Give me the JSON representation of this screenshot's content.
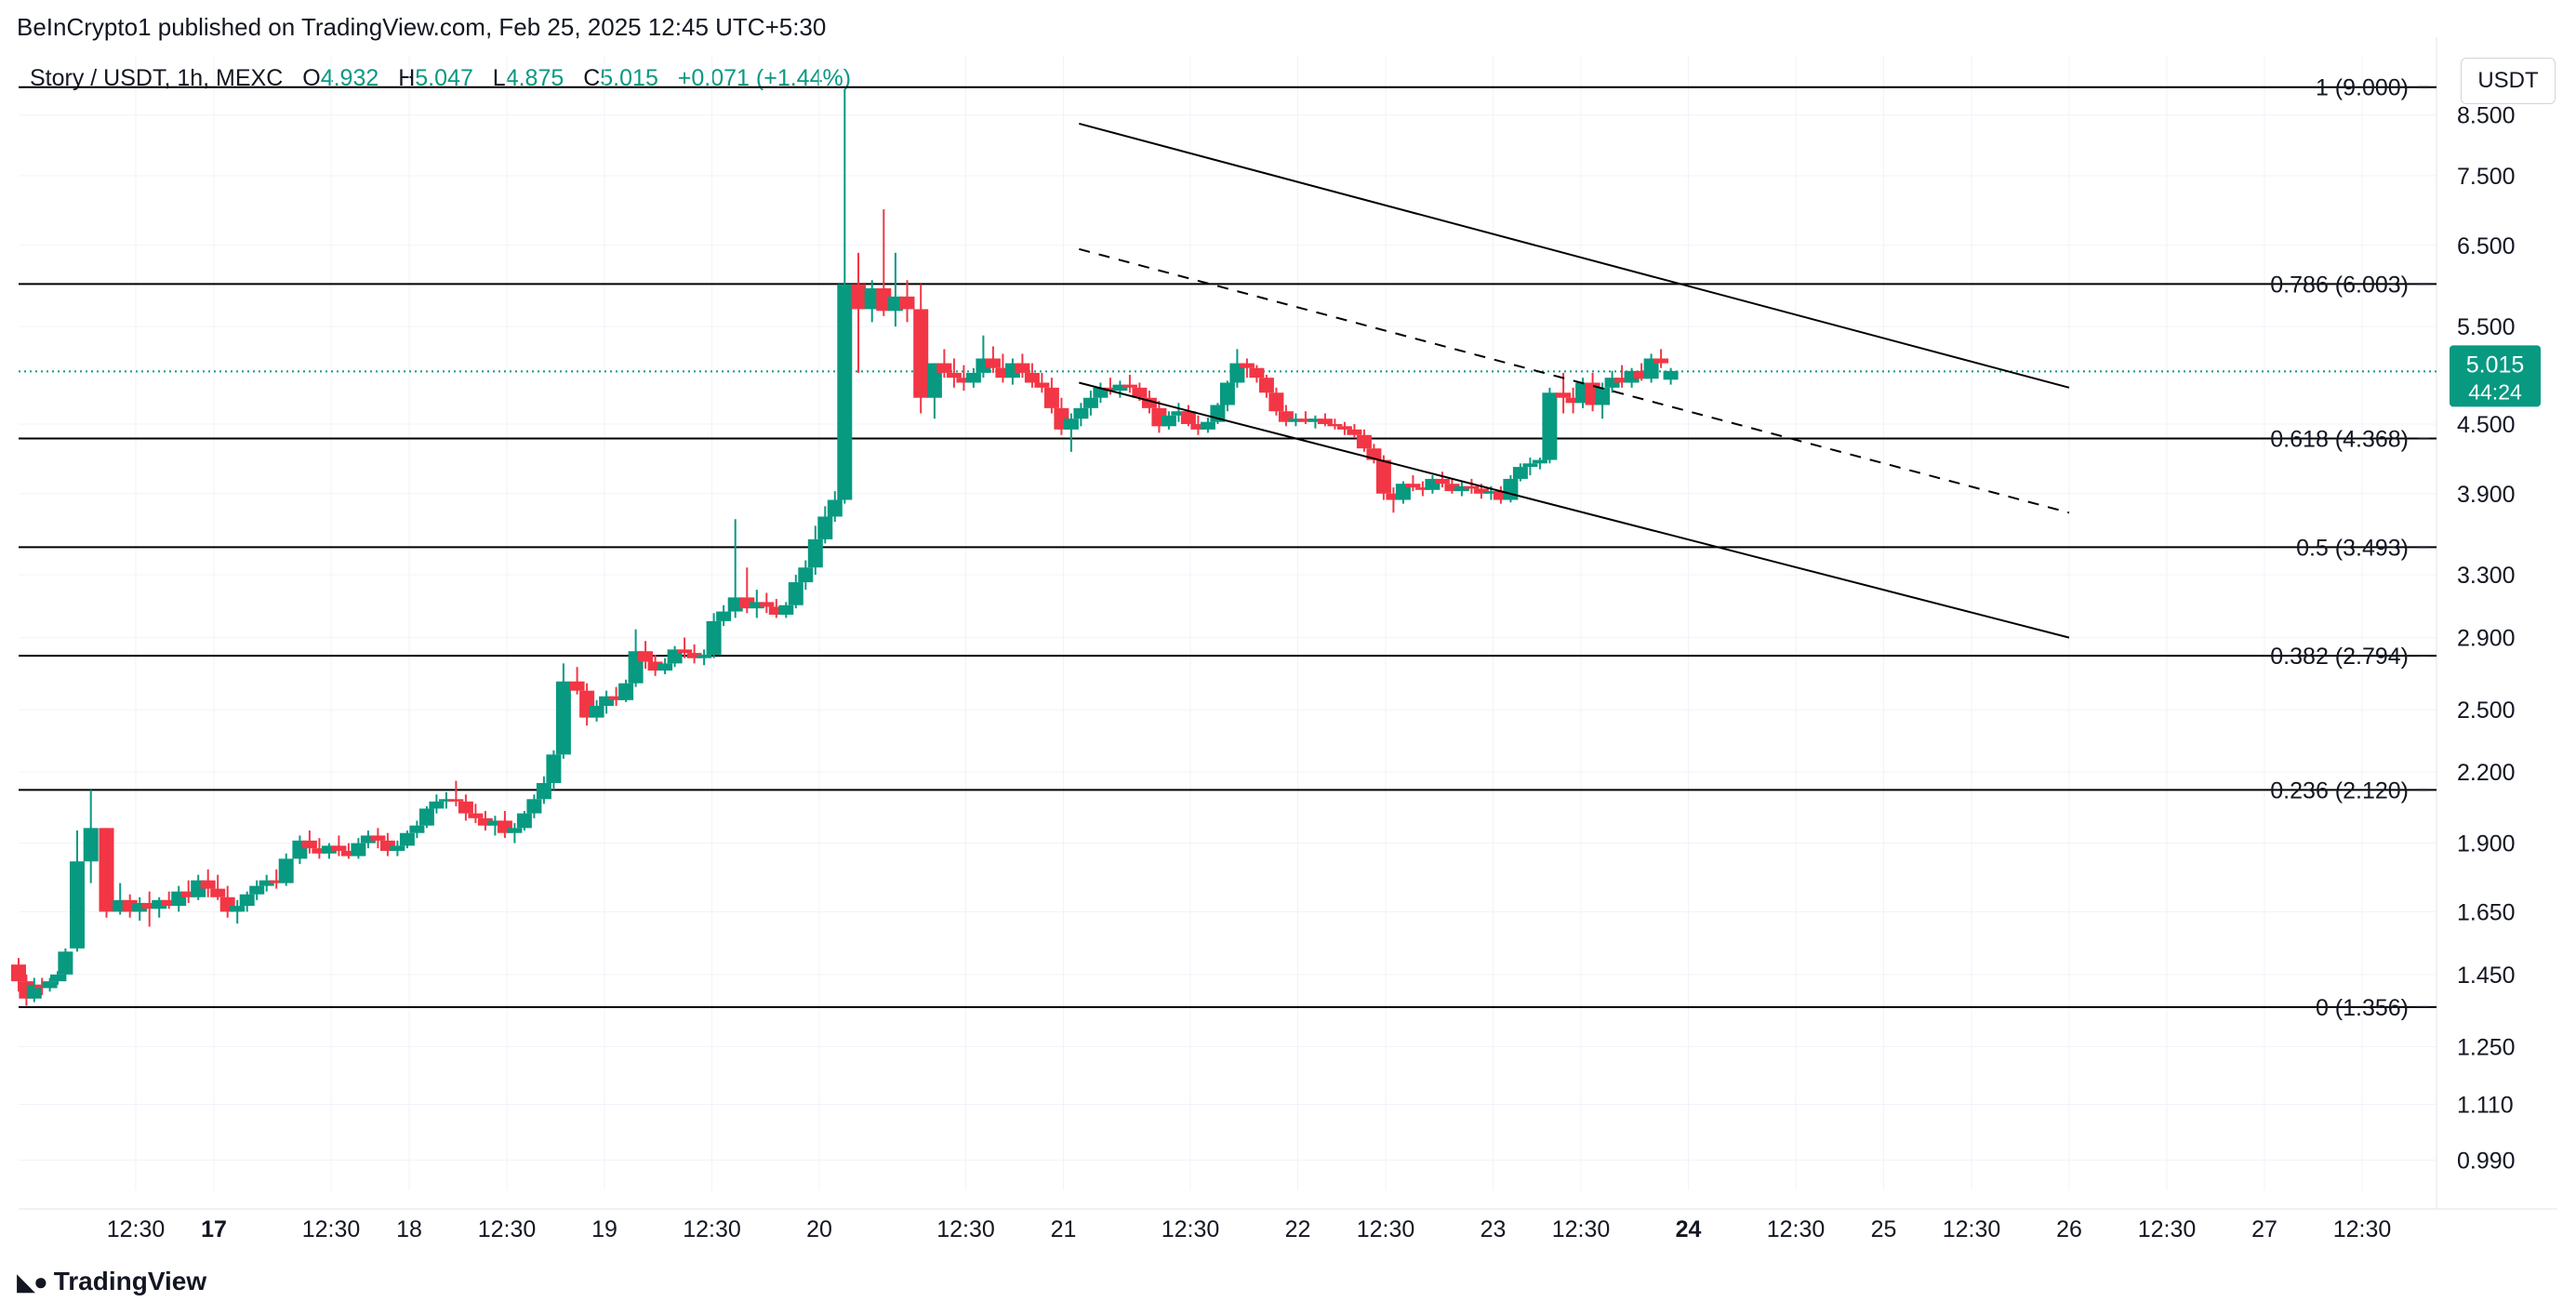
{
  "header": {
    "published": "BeInCrypto1 published on TradingView.com, Feb 25, 2025 12:45 UTC+5:30"
  },
  "legend": {
    "symbol": "Story / USDT, 1h, MEXC",
    "o_label": "O",
    "o_value": "4.932",
    "h_label": "H",
    "h_value": "5.047",
    "l_label": "L",
    "l_value": "4.875",
    "c_label": "C",
    "c_value": "5.015",
    "change": "+0.071 (+1.44%)"
  },
  "currency_button": "USDT",
  "footer": {
    "brand": "TradingView"
  },
  "colors": {
    "up": "#089981",
    "down": "#f23645",
    "line": "#000000",
    "grid": "#f0f3fa"
  },
  "chart_data": {
    "type": "candlestick",
    "y_scale": "log",
    "ylim": [
      0.93,
      9.6
    ],
    "y_ticks": [
      "8.500",
      "7.500",
      "6.500",
      "5.500",
      "4.500",
      "3.900",
      "3.300",
      "2.900",
      "2.500",
      "2.200",
      "1.900",
      "1.650",
      "1.450",
      "1.250",
      "1.110",
      "0.990"
    ],
    "x_ticks": [
      {
        "t": 0.6,
        "label": "12:30",
        "bold": false
      },
      {
        "t": 1.0,
        "label": "17",
        "bold": true
      },
      {
        "t": 1.6,
        "label": "12:30",
        "bold": false
      },
      {
        "t": 2.0,
        "label": "18",
        "bold": false
      },
      {
        "t": 2.5,
        "label": "12:30",
        "bold": false
      },
      {
        "t": 3.0,
        "label": "19",
        "bold": false
      },
      {
        "t": 3.55,
        "label": "12:30",
        "bold": false
      },
      {
        "t": 4.1,
        "label": "20",
        "bold": false
      },
      {
        "t": 4.85,
        "label": "12:30",
        "bold": false
      },
      {
        "t": 5.35,
        "label": "21",
        "bold": false
      },
      {
        "t": 6.0,
        "label": "12:30",
        "bold": false
      },
      {
        "t": 6.55,
        "label": "22",
        "bold": false
      },
      {
        "t": 7.0,
        "label": "12:30",
        "bold": false
      },
      {
        "t": 7.55,
        "label": "23",
        "bold": false
      },
      {
        "t": 8.0,
        "label": "12:30",
        "bold": false
      },
      {
        "t": 8.55,
        "label": "24",
        "bold": true
      },
      {
        "t": 9.1,
        "label": "12:30",
        "bold": false
      },
      {
        "t": 9.55,
        "label": "25",
        "bold": false
      },
      {
        "t": 10.0,
        "label": "12:30",
        "bold": false
      },
      {
        "t": 10.5,
        "label": "26",
        "bold": false
      },
      {
        "t": 11.0,
        "label": "12:30",
        "bold": false
      },
      {
        "t": 11.5,
        "label": "27",
        "bold": false
      },
      {
        "t": 12.0,
        "label": "12:30",
        "bold": false
      }
    ],
    "fib_levels": [
      {
        "label": "1 (9.000)",
        "value": 9.0
      },
      {
        "label": "0.786 (6.003)",
        "value": 6.003
      },
      {
        "label": "0.618 (4.368)",
        "value": 4.368
      },
      {
        "label": "0.5 (3.493)",
        "value": 3.493
      },
      {
        "label": "0.382 (2.794)",
        "value": 2.794
      },
      {
        "label": "0.236 (2.120)",
        "value": 2.12
      },
      {
        "label": "0 (1.356)",
        "value": 1.356
      }
    ],
    "current_price": {
      "value": 5.015,
      "label": "5.015",
      "countdown": "44:24"
    },
    "trendlines": [
      {
        "style": "solid",
        "t1": 5.43,
        "v1": 8.35,
        "t2": 10.5,
        "v2": 4.85
      },
      {
        "style": "solid",
        "t1": 5.43,
        "v1": 4.9,
        "t2": 10.5,
        "v2": 2.9
      },
      {
        "style": "dashed",
        "t1": 5.43,
        "v1": 6.45,
        "t2": 10.5,
        "v2": 3.75
      }
    ],
    "candles": [
      [
        0.0,
        1.48,
        1.5,
        1.4,
        1.43
      ],
      [
        0.04,
        1.43,
        1.45,
        1.36,
        1.38
      ],
      [
        0.08,
        1.38,
        1.44,
        1.37,
        1.42
      ],
      [
        0.12,
        1.42,
        1.44,
        1.39,
        1.41
      ],
      [
        0.16,
        1.41,
        1.44,
        1.4,
        1.43
      ],
      [
        0.2,
        1.43,
        1.46,
        1.42,
        1.45
      ],
      [
        0.24,
        1.45,
        1.53,
        1.43,
        1.52
      ],
      [
        0.3,
        1.53,
        1.95,
        1.52,
        1.83
      ],
      [
        0.37,
        1.83,
        2.12,
        1.75,
        1.96
      ],
      [
        0.45,
        1.96,
        1.96,
        1.63,
        1.65
      ],
      [
        0.52,
        1.65,
        1.75,
        1.64,
        1.69
      ],
      [
        0.57,
        1.69,
        1.71,
        1.63,
        1.65
      ],
      [
        0.62,
        1.65,
        1.7,
        1.62,
        1.68
      ],
      [
        0.67,
        1.68,
        1.72,
        1.6,
        1.66
      ],
      [
        0.72,
        1.66,
        1.7,
        1.63,
        1.69
      ],
      [
        0.77,
        1.69,
        1.72,
        1.66,
        1.67
      ],
      [
        0.82,
        1.67,
        1.74,
        1.65,
        1.72
      ],
      [
        0.87,
        1.72,
        1.76,
        1.68,
        1.7
      ],
      [
        0.92,
        1.7,
        1.78,
        1.69,
        1.76
      ],
      [
        0.97,
        1.76,
        1.8,
        1.7,
        1.73
      ],
      [
        1.02,
        1.73,
        1.78,
        1.69,
        1.7
      ],
      [
        1.07,
        1.7,
        1.74,
        1.63,
        1.65
      ],
      [
        1.12,
        1.65,
        1.69,
        1.61,
        1.67
      ],
      [
        1.17,
        1.67,
        1.72,
        1.65,
        1.71
      ],
      [
        1.22,
        1.71,
        1.76,
        1.69,
        1.74
      ],
      [
        1.27,
        1.74,
        1.78,
        1.72,
        1.76
      ],
      [
        1.32,
        1.76,
        1.8,
        1.73,
        1.75
      ],
      [
        1.37,
        1.75,
        1.86,
        1.74,
        1.84
      ],
      [
        1.44,
        1.84,
        1.93,
        1.82,
        1.91
      ],
      [
        1.49,
        1.91,
        1.95,
        1.86,
        1.88
      ],
      [
        1.54,
        1.88,
        1.92,
        1.84,
        1.86
      ],
      [
        1.59,
        1.86,
        1.9,
        1.84,
        1.89
      ],
      [
        1.64,
        1.89,
        1.93,
        1.85,
        1.87
      ],
      [
        1.69,
        1.87,
        1.9,
        1.84,
        1.85
      ],
      [
        1.74,
        1.85,
        1.92,
        1.84,
        1.9
      ],
      [
        1.79,
        1.9,
        1.95,
        1.88,
        1.93
      ],
      [
        1.84,
        1.93,
        1.96,
        1.88,
        1.91
      ],
      [
        1.89,
        1.91,
        1.94,
        1.85,
        1.87
      ],
      [
        1.94,
        1.87,
        1.91,
        1.85,
        1.89
      ],
      [
        1.99,
        1.89,
        1.95,
        1.88,
        1.94
      ],
      [
        2.04,
        1.94,
        1.99,
        1.92,
        1.97
      ],
      [
        2.09,
        1.97,
        2.05,
        1.96,
        2.04
      ],
      [
        2.14,
        2.04,
        2.1,
        2.02,
        2.07
      ],
      [
        2.19,
        2.07,
        2.11,
        2.04,
        2.08
      ],
      [
        2.24,
        2.08,
        2.16,
        2.05,
        2.07
      ],
      [
        2.29,
        2.07,
        2.1,
        1.99,
        2.02
      ],
      [
        2.34,
        2.02,
        2.06,
        1.98,
        2.0
      ],
      [
        2.39,
        2.0,
        2.03,
        1.95,
        1.97
      ],
      [
        2.44,
        1.97,
        2.01,
        1.93,
        1.99
      ],
      [
        2.49,
        1.99,
        2.03,
        1.92,
        1.94
      ],
      [
        2.54,
        1.94,
        1.98,
        1.9,
        1.96
      ],
      [
        2.59,
        1.96,
        2.03,
        1.95,
        2.02
      ],
      [
        2.64,
        2.02,
        2.1,
        2.0,
        2.08
      ],
      [
        2.69,
        2.08,
        2.18,
        2.06,
        2.15
      ],
      [
        2.74,
        2.15,
        2.3,
        2.12,
        2.28
      ],
      [
        2.79,
        2.28,
        2.75,
        2.26,
        2.65
      ],
      [
        2.86,
        2.65,
        2.73,
        2.58,
        2.6
      ],
      [
        2.91,
        2.6,
        2.64,
        2.42,
        2.46
      ],
      [
        2.96,
        2.46,
        2.55,
        2.44,
        2.52
      ],
      [
        3.01,
        2.52,
        2.6,
        2.48,
        2.57
      ],
      [
        3.06,
        2.57,
        2.62,
        2.52,
        2.55
      ],
      [
        3.11,
        2.55,
        2.66,
        2.54,
        2.64
      ],
      [
        3.16,
        2.64,
        2.95,
        2.62,
        2.82
      ],
      [
        3.21,
        2.82,
        2.88,
        2.72,
        2.76
      ],
      [
        3.26,
        2.76,
        2.8,
        2.68,
        2.71
      ],
      [
        3.31,
        2.71,
        2.78,
        2.69,
        2.75
      ],
      [
        3.36,
        2.75,
        2.85,
        2.73,
        2.83
      ],
      [
        3.41,
        2.83,
        2.9,
        2.78,
        2.81
      ],
      [
        3.46,
        2.81,
        2.86,
        2.75,
        2.78
      ],
      [
        3.51,
        2.78,
        2.83,
        2.74,
        2.8
      ],
      [
        3.56,
        2.8,
        3.05,
        2.78,
        3.0
      ],
      [
        3.61,
        3.0,
        3.1,
        2.97,
        3.06
      ],
      [
        3.67,
        3.06,
        3.7,
        3.02,
        3.15
      ],
      [
        3.73,
        3.15,
        3.35,
        3.05,
        3.08
      ],
      [
        3.78,
        3.08,
        3.2,
        3.02,
        3.12
      ],
      [
        3.83,
        3.12,
        3.18,
        3.05,
        3.09
      ],
      [
        3.88,
        3.09,
        3.14,
        3.02,
        3.04
      ],
      [
        3.93,
        3.04,
        3.12,
        3.02,
        3.1
      ],
      [
        3.98,
        3.1,
        3.3,
        3.08,
        3.25
      ],
      [
        4.03,
        3.25,
        3.4,
        3.2,
        3.35
      ],
      [
        4.08,
        3.35,
        3.65,
        3.3,
        3.55
      ],
      [
        4.13,
        3.55,
        3.8,
        3.52,
        3.72
      ],
      [
        4.18,
        3.72,
        3.92,
        3.68,
        3.85
      ],
      [
        4.23,
        3.85,
        8.95,
        3.82,
        6.0
      ],
      [
        4.3,
        6.0,
        6.4,
        5.0,
        5.7
      ],
      [
        4.37,
        5.7,
        6.05,
        5.55,
        5.95
      ],
      [
        4.43,
        5.95,
        7.0,
        5.62,
        5.68
      ],
      [
        4.49,
        5.68,
        6.4,
        5.5,
        5.85
      ],
      [
        4.55,
        5.85,
        6.05,
        5.55,
        5.7
      ],
      [
        4.62,
        5.7,
        6.0,
        4.6,
        4.75
      ],
      [
        4.69,
        4.75,
        5.1,
        4.55,
        5.1
      ],
      [
        4.74,
        5.1,
        5.25,
        4.95,
        5.0
      ],
      [
        4.79,
        5.0,
        5.15,
        4.85,
        4.95
      ],
      [
        4.84,
        4.95,
        5.08,
        4.82,
        4.9
      ],
      [
        4.89,
        4.9,
        5.05,
        4.85,
        5.0
      ],
      [
        4.94,
        5.0,
        5.4,
        4.95,
        5.15
      ],
      [
        4.99,
        5.15,
        5.28,
        5.0,
        5.05
      ],
      [
        5.04,
        5.05,
        5.2,
        4.9,
        4.95
      ],
      [
        5.09,
        4.95,
        5.15,
        4.88,
        5.1
      ],
      [
        5.14,
        5.1,
        5.2,
        4.95,
        5.0
      ],
      [
        5.19,
        5.0,
        5.1,
        4.85,
        4.9
      ],
      [
        5.24,
        4.9,
        5.0,
        4.8,
        4.85
      ],
      [
        5.29,
        4.85,
        4.95,
        4.6,
        4.65
      ],
      [
        5.34,
        4.65,
        4.75,
        4.4,
        4.45
      ],
      [
        5.39,
        4.45,
        4.6,
        4.25,
        4.55
      ],
      [
        5.44,
        4.55,
        4.7,
        4.48,
        4.65
      ],
      [
        5.49,
        4.65,
        4.82,
        4.58,
        4.75
      ],
      [
        5.54,
        4.75,
        4.9,
        4.7,
        4.85
      ],
      [
        5.59,
        4.85,
        4.95,
        4.78,
        4.82
      ],
      [
        5.64,
        4.82,
        4.92,
        4.75,
        4.88
      ],
      [
        5.69,
        4.88,
        4.98,
        4.8,
        4.85
      ],
      [
        5.74,
        4.85,
        4.9,
        4.72,
        4.75
      ],
      [
        5.79,
        4.75,
        4.82,
        4.6,
        4.65
      ],
      [
        5.84,
        4.65,
        4.72,
        4.42,
        4.48
      ],
      [
        5.89,
        4.48,
        4.62,
        4.45,
        4.58
      ],
      [
        5.94,
        4.58,
        4.7,
        4.52,
        4.62
      ],
      [
        5.99,
        4.62,
        4.68,
        4.48,
        4.5
      ],
      [
        6.04,
        4.5,
        4.58,
        4.4,
        4.45
      ],
      [
        6.09,
        4.45,
        4.56,
        4.42,
        4.52
      ],
      [
        6.14,
        4.52,
        4.7,
        4.5,
        4.68
      ],
      [
        6.19,
        4.68,
        4.92,
        4.62,
        4.9
      ],
      [
        6.24,
        4.9,
        5.25,
        4.85,
        5.1
      ],
      [
        6.29,
        5.1,
        5.15,
        4.95,
        5.05
      ],
      [
        6.34,
        5.05,
        5.08,
        4.9,
        4.95
      ],
      [
        6.39,
        4.95,
        4.98,
        4.75,
        4.8
      ],
      [
        6.44,
        4.8,
        4.85,
        4.58,
        4.62
      ],
      [
        6.49,
        4.62,
        4.68,
        4.48,
        4.52
      ],
      [
        6.54,
        4.52,
        4.6,
        4.48,
        4.55
      ],
      [
        6.59,
        4.55,
        4.62,
        4.5,
        4.52
      ],
      [
        6.64,
        4.52,
        4.58,
        4.46,
        4.55
      ],
      [
        6.69,
        4.55,
        4.6,
        4.48,
        4.5
      ],
      [
        6.74,
        4.5,
        4.55,
        4.45,
        4.48
      ],
      [
        6.79,
        4.48,
        4.52,
        4.4,
        4.45
      ],
      [
        6.84,
        4.45,
        4.5,
        4.38,
        4.4
      ],
      [
        6.89,
        4.4,
        4.45,
        4.25,
        4.28
      ],
      [
        6.94,
        4.28,
        4.32,
        4.15,
        4.18
      ],
      [
        6.99,
        4.18,
        4.22,
        3.85,
        3.9
      ],
      [
        7.04,
        3.9,
        3.95,
        3.75,
        3.85
      ],
      [
        7.09,
        3.85,
        4.0,
        3.82,
        3.98
      ],
      [
        7.14,
        3.98,
        4.05,
        3.92,
        3.95
      ],
      [
        7.19,
        3.95,
        4.0,
        3.88,
        3.93
      ],
      [
        7.24,
        3.93,
        4.05,
        3.9,
        4.02
      ],
      [
        7.29,
        4.02,
        4.08,
        3.95,
        3.98
      ],
      [
        7.34,
        3.98,
        4.02,
        3.9,
        3.92
      ],
      [
        7.39,
        3.92,
        4.0,
        3.88,
        3.96
      ],
      [
        7.44,
        3.96,
        4.02,
        3.9,
        3.94
      ],
      [
        7.49,
        3.94,
        3.98,
        3.86,
        3.9
      ],
      [
        7.54,
        3.9,
        3.96,
        3.85,
        3.92
      ],
      [
        7.59,
        3.92,
        3.96,
        3.82,
        3.85
      ],
      [
        7.64,
        3.85,
        4.05,
        3.83,
        4.02
      ],
      [
        7.69,
        4.02,
        4.15,
        4.0,
        4.12
      ],
      [
        7.74,
        4.12,
        4.2,
        4.05,
        4.15
      ],
      [
        7.79,
        4.15,
        4.2,
        4.1,
        4.18
      ],
      [
        7.84,
        4.18,
        4.85,
        4.15,
        4.8
      ],
      [
        7.91,
        4.8,
        5.0,
        4.6,
        4.75
      ],
      [
        7.96,
        4.75,
        4.85,
        4.6,
        4.7
      ],
      [
        8.01,
        4.7,
        4.95,
        4.65,
        4.9
      ],
      [
        8.06,
        4.9,
        5.0,
        4.62,
        4.68
      ],
      [
        8.11,
        4.68,
        4.9,
        4.55,
        4.85
      ],
      [
        8.16,
        4.85,
        5.02,
        4.8,
        4.95
      ],
      [
        8.21,
        4.95,
        5.08,
        4.85,
        4.9
      ],
      [
        8.26,
        4.9,
        5.05,
        4.85,
        5.02
      ],
      [
        8.31,
        5.02,
        5.1,
        4.92,
        4.94
      ],
      [
        8.36,
        4.94,
        5.2,
        4.9,
        5.15
      ],
      [
        8.41,
        5.15,
        5.25,
        5.05,
        5.1
      ],
      [
        8.46,
        4.93,
        5.05,
        4.88,
        5.02
      ]
    ]
  }
}
